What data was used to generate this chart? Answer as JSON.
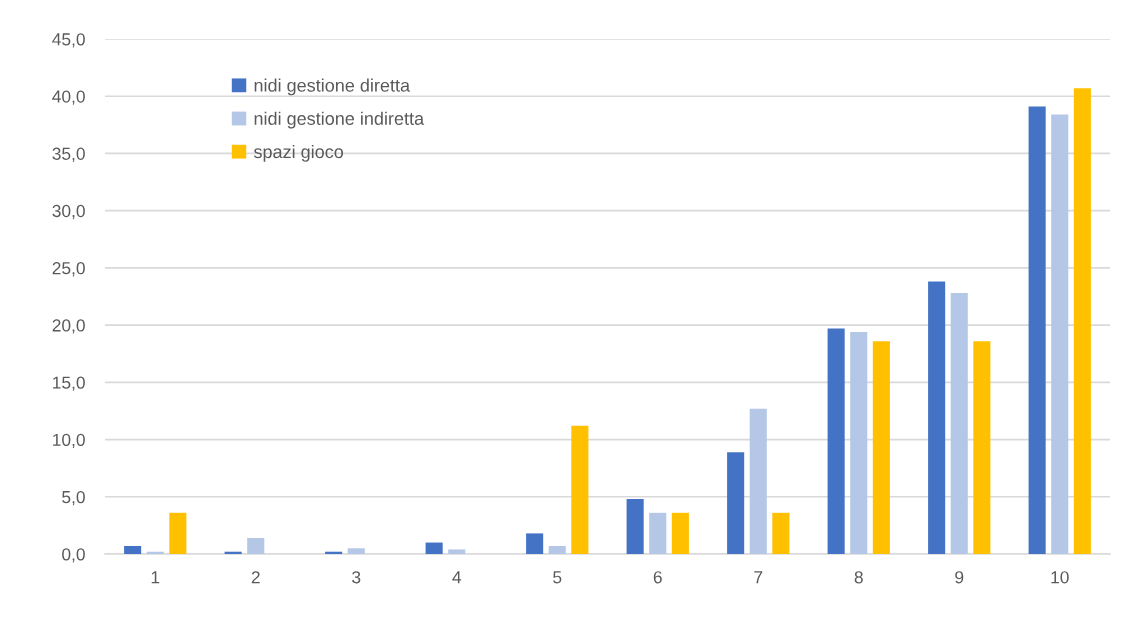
{
  "chart_data": {
    "type": "bar",
    "categories": [
      "1",
      "2",
      "3",
      "4",
      "5",
      "6",
      "7",
      "8",
      "9",
      "10"
    ],
    "series": [
      {
        "name": "nidi gestione diretta",
        "color": "#4472c4",
        "values": [
          0.7,
          0.2,
          0.2,
          1.0,
          1.8,
          4.8,
          8.9,
          19.7,
          23.8,
          39.1
        ]
      },
      {
        "name": "nidi gestione indiretta",
        "color": "#b4c7e7",
        "values": [
          0.2,
          1.4,
          0.5,
          0.4,
          0.7,
          3.6,
          12.7,
          19.4,
          22.8,
          38.4
        ]
      },
      {
        "name": "spazi gioco",
        "color": "#ffc000",
        "values": [
          3.6,
          0,
          0,
          0,
          11.2,
          3.6,
          3.6,
          18.6,
          18.6,
          40.7
        ]
      }
    ],
    "ylim": [
      0,
      45
    ],
    "yticks": [
      {
        "value": 0,
        "label": "0,0"
      },
      {
        "value": 5,
        "label": "5,0"
      },
      {
        "value": 10,
        "label": "10,0"
      },
      {
        "value": 15,
        "label": "15,0"
      },
      {
        "value": 20,
        "label": "20,0"
      },
      {
        "value": 25,
        "label": "25,0"
      },
      {
        "value": 30,
        "label": "30,0"
      },
      {
        "value": 35,
        "label": "35,0"
      },
      {
        "value": 40,
        "label": "40,0"
      },
      {
        "value": 45,
        "label": "45,0"
      }
    ],
    "grid": "y",
    "legend": "top left"
  }
}
